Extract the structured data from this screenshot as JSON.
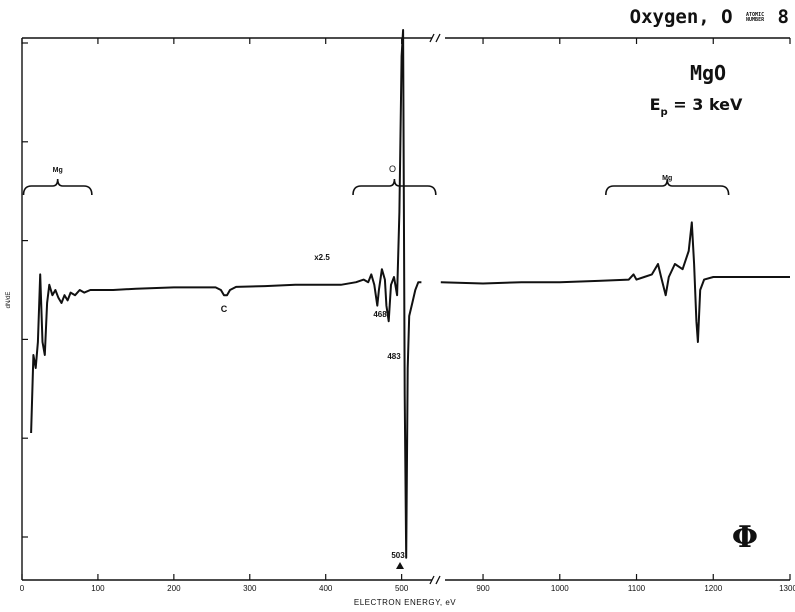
{
  "header": {
    "element": "Oxygen, O",
    "atomic_label_top": "ATOMIC",
    "atomic_label_bottom": "NUMBER",
    "atomic_number": "8"
  },
  "chart_data": {
    "type": "line",
    "title": "MgO",
    "subtitle": "E",
    "subtitle_sub": "p",
    "subtitle_rest": " = 3 keV",
    "xlabel": "ELECTRON ENERGY, eV",
    "ylabel": "dN/dE",
    "logo": "Φ",
    "xticks_left": [
      "0",
      "100",
      "200",
      "300",
      "400",
      "500"
    ],
    "xticks_right": [
      "900",
      "1000",
      "1100",
      "1200",
      "1300"
    ],
    "xlim_left": [
      0,
      540
    ],
    "xlim_right": [
      840,
      1300
    ],
    "ylim": [
      -1,
      1
    ],
    "grid": false,
    "series_left": [
      [
        12,
        -0.55
      ],
      [
        15,
        -0.25
      ],
      [
        18,
        -0.3
      ],
      [
        21,
        -0.2
      ],
      [
        24,
        0.06
      ],
      [
        27,
        -0.2
      ],
      [
        30,
        -0.25
      ],
      [
        33,
        -0.05
      ],
      [
        36,
        0.02
      ],
      [
        40,
        -0.02
      ],
      [
        44,
        0.0
      ],
      [
        48,
        -0.03
      ],
      [
        52,
        -0.05
      ],
      [
        56,
        -0.02
      ],
      [
        60,
        -0.04
      ],
      [
        64,
        -0.01
      ],
      [
        70,
        -0.02
      ],
      [
        76,
        0.0
      ],
      [
        82,
        -0.01
      ],
      [
        90,
        0.0
      ],
      [
        100,
        0.0
      ],
      [
        120,
        0.0
      ],
      [
        150,
        0.005
      ],
      [
        200,
        0.01
      ],
      [
        240,
        0.01
      ],
      [
        255,
        0.01
      ],
      [
        262,
        0.0
      ],
      [
        266,
        -0.02
      ],
      [
        270,
        -0.02
      ],
      [
        274,
        0.0
      ],
      [
        282,
        0.012
      ],
      [
        320,
        0.015
      ],
      [
        360,
        0.02
      ],
      [
        420,
        0.02
      ],
      [
        440,
        0.03
      ],
      [
        450,
        0.04
      ],
      [
        456,
        0.03
      ],
      [
        460,
        0.06
      ],
      [
        464,
        0.02
      ],
      [
        468,
        -0.06
      ],
      [
        470,
        0.0
      ],
      [
        474,
        0.08
      ],
      [
        478,
        0.04
      ],
      [
        480,
        -0.06
      ],
      [
        483,
        -0.12
      ],
      [
        486,
        0.02
      ],
      [
        490,
        0.05
      ],
      [
        494,
        -0.02
      ],
      [
        497,
        0.3
      ],
      [
        500,
        0.9
      ],
      [
        502,
        1.0
      ],
      [
        504,
        -0.4
      ],
      [
        506,
        -1.03
      ],
      [
        508,
        -0.3
      ],
      [
        510,
        -0.1
      ],
      [
        514,
        -0.05
      ],
      [
        518,
        0.0
      ],
      [
        522,
        0.03
      ],
      [
        526,
        0.03
      ]
    ],
    "series_right": [
      [
        845,
        0.03
      ],
      [
        900,
        0.025
      ],
      [
        950,
        0.03
      ],
      [
        1000,
        0.03
      ],
      [
        1050,
        0.035
      ],
      [
        1090,
        0.04
      ],
      [
        1096,
        0.06
      ],
      [
        1100,
        0.04
      ],
      [
        1110,
        0.05
      ],
      [
        1120,
        0.06
      ],
      [
        1128,
        0.1
      ],
      [
        1132,
        0.05
      ],
      [
        1138,
        -0.02
      ],
      [
        1142,
        0.05
      ],
      [
        1150,
        0.1
      ],
      [
        1160,
        0.08
      ],
      [
        1168,
        0.15
      ],
      [
        1172,
        0.26
      ],
      [
        1175,
        0.1
      ],
      [
        1178,
        -0.12
      ],
      [
        1180,
        -0.2
      ],
      [
        1183,
        0.0
      ],
      [
        1188,
        0.04
      ],
      [
        1200,
        0.05
      ],
      [
        1250,
        0.05
      ],
      [
        1300,
        0.05
      ]
    ],
    "annotations": {
      "mg_left": "Mg",
      "o": "O",
      "mg_right": "Mg",
      "scale": "x2.5",
      "c": "C",
      "p468": "468",
      "p483": "483",
      "p503": "503"
    }
  }
}
